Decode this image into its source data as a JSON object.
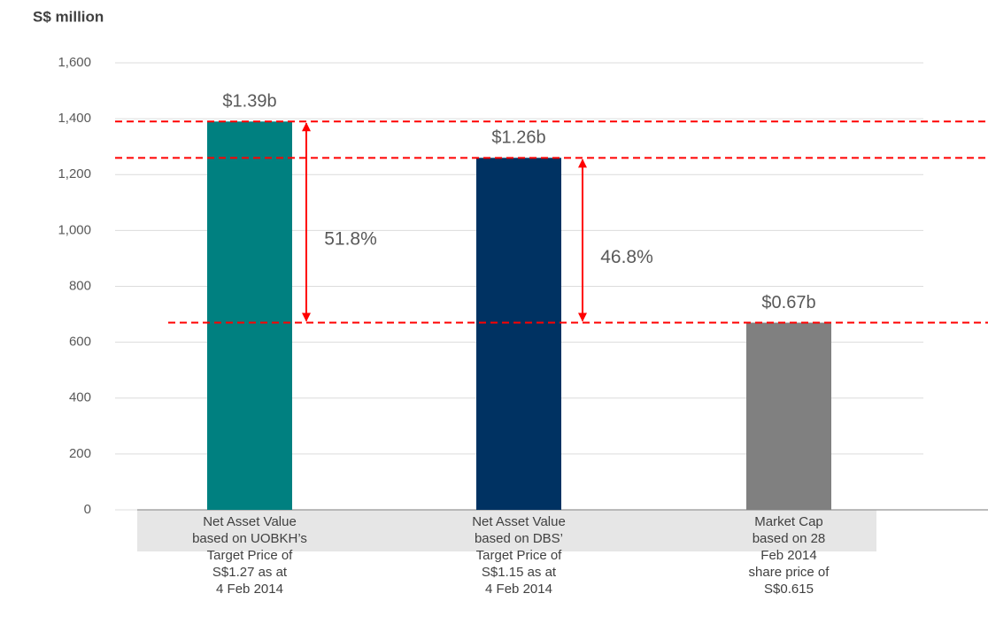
{
  "chart_data": {
    "type": "bar",
    "y_axis_label": "S$ million",
    "categories": [
      "Net Asset Value\nbased on UOBKH’s\nTarget Price of\nS$1.27 as at\n4 Feb 2014",
      "Net Asset Value\nbased on DBS’\nTarget Price of\nS$1.15 as at\n4 Feb 2014",
      "Market Cap\nbased on 28\nFeb 2014\nshare price of\nS$0.615"
    ],
    "values": [
      1390,
      1260,
      670
    ],
    "value_labels": [
      "$1.39b",
      "$1.26b",
      "$0.67b"
    ],
    "colors": [
      "#008080",
      "#003262",
      "#808080"
    ],
    "ylim": [
      0,
      1600
    ],
    "yticks": [
      0,
      200,
      400,
      600,
      800,
      {
        "value": 1000,
        "label": "1,000"
      },
      {
        "value": 1200,
        "label": "1,200"
      },
      {
        "value": 1400,
        "label": "1,400"
      },
      {
        "value": 1600,
        "label": "1,600"
      }
    ],
    "grid": true,
    "annotations": [
      {
        "text": "51.8%",
        "from": 0,
        "to": 2
      },
      {
        "text": "46.8%",
        "from": 1,
        "to": 2
      }
    ]
  }
}
